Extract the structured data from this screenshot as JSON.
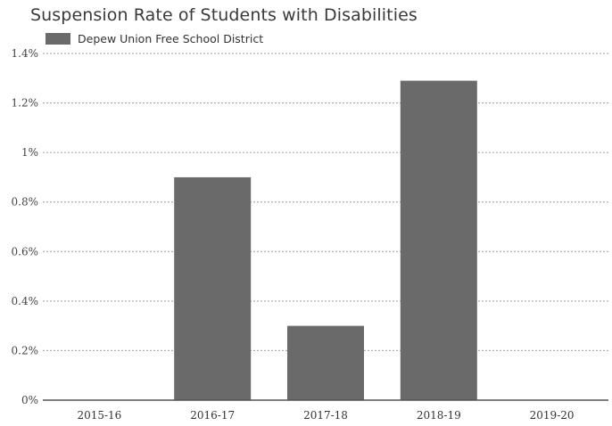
{
  "chart_data": {
    "type": "bar",
    "title": "Suspension Rate of Students with Disabilities",
    "legend_position": "top-left",
    "grid": true,
    "ylim": [
      0,
      1.4
    ],
    "y_ticks": [
      0,
      0.2,
      0.4,
      0.6,
      0.8,
      1.0,
      1.2,
      1.4
    ],
    "y_tick_labels": [
      "0%",
      "0.2%",
      "0.4%",
      "0.6%",
      "0.8%",
      "1%",
      "1.2%",
      "1.4%"
    ],
    "categories": [
      "2015-16",
      "2016-17",
      "2017-18",
      "2018-19",
      "2019-20"
    ],
    "series": [
      {
        "name": "Depew Union Free School District",
        "color": "#6a6a6a",
        "values": [
          0,
          0.9,
          0.3,
          1.29,
          0
        ]
      }
    ]
  }
}
